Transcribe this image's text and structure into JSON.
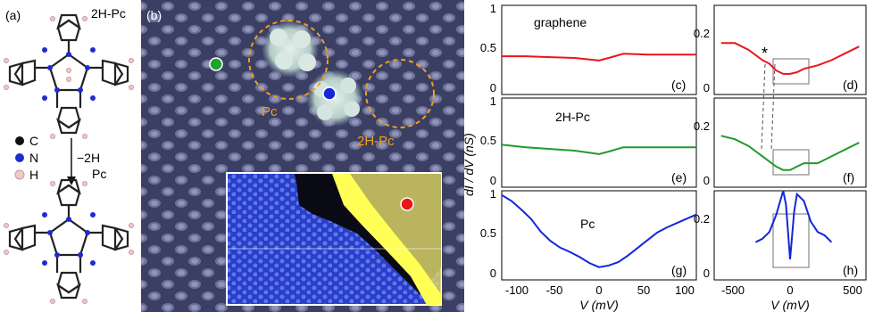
{
  "panel_a": {
    "tag": "(a)",
    "top_label": "2H-Pc",
    "bottom_label": "Pc",
    "arrow_label": "−2H",
    "legend": [
      {
        "label": "C",
        "color": "#111111"
      },
      {
        "label": "N",
        "color": "#1f2bd0"
      },
      {
        "label": "H",
        "color": "#f1c9c9"
      }
    ]
  },
  "panel_b": {
    "tag": "(b)",
    "circle_label_pc": "Pc",
    "circle_label_2hpc": "2H-Pc",
    "marker_colors": {
      "graphene": "#1aa52e",
      "twoHPc": "#1426d9",
      "pc": "#e8161b",
      "circles": "#f0a020"
    }
  },
  "chart_data": [
    {
      "type": "line",
      "id": "c",
      "tag": "(c)",
      "label": "graphene",
      "xlim": [
        -100,
        100
      ],
      "ylim": [
        0,
        1.05
      ],
      "x": [
        -100,
        -75,
        -50,
        -25,
        0,
        10,
        25,
        50,
        75,
        100
      ],
      "series": [
        {
          "color": "#e8161b",
          "values": [
            0.45,
            0.45,
            0.44,
            0.43,
            0.4,
            0.43,
            0.48,
            0.47,
            0.47,
            0.47
          ]
        }
      ]
    },
    {
      "type": "line",
      "id": "e",
      "tag": "(e)",
      "label": "2H-Pc",
      "xlim": [
        -100,
        100
      ],
      "ylim": [
        0,
        1.05
      ],
      "x": [
        -100,
        -75,
        -50,
        -25,
        0,
        10,
        25,
        50,
        75,
        100
      ],
      "series": [
        {
          "color": "#1f9b2c",
          "values": [
            0.5,
            0.47,
            0.45,
            0.43,
            0.39,
            0.42,
            0.47,
            0.47,
            0.47,
            0.47
          ]
        }
      ]
    },
    {
      "type": "line",
      "id": "g",
      "tag": "(g)",
      "label": "Pc",
      "xlim": [
        -100,
        100
      ],
      "ylim": [
        0,
        1.05
      ],
      "x": [
        -100,
        -90,
        -80,
        -70,
        -60,
        -50,
        -40,
        -30,
        -20,
        -10,
        0,
        10,
        20,
        30,
        40,
        50,
        60,
        70,
        80,
        90,
        100
      ],
      "series": [
        {
          "color": "#1426d9",
          "values": [
            1.0,
            0.93,
            0.83,
            0.72,
            0.57,
            0.46,
            0.38,
            0.33,
            0.27,
            0.2,
            0.15,
            0.17,
            0.21,
            0.29,
            0.38,
            0.47,
            0.56,
            0.62,
            0.67,
            0.72,
            0.77
          ]
        }
      ]
    },
    {
      "type": "line",
      "id": "d",
      "tag": "(d)",
      "xlim": [
        -550,
        550
      ],
      "ylim": [
        0,
        0.26
      ],
      "x": [
        -500,
        -400,
        -300,
        -200,
        -150,
        -100,
        -50,
        0,
        50,
        100,
        200,
        300,
        400,
        500
      ],
      "series": [
        {
          "color": "#e8161b",
          "values": [
            0.15,
            0.15,
            0.13,
            0.1,
            0.09,
            0.07,
            0.06,
            0.06,
            0.065,
            0.075,
            0.085,
            0.1,
            0.12,
            0.14
          ]
        }
      ],
      "annotation": "*"
    },
    {
      "type": "line",
      "id": "f",
      "tag": "(f)",
      "xlim": [
        -550,
        550
      ],
      "ylim": [
        0,
        0.26
      ],
      "x": [
        -500,
        -400,
        -300,
        -200,
        -100,
        -50,
        0,
        50,
        100,
        200,
        300,
        400,
        500
      ],
      "series": [
        {
          "color": "#1f9b2c",
          "values": [
            0.15,
            0.14,
            0.12,
            0.09,
            0.06,
            0.05,
            0.05,
            0.06,
            0.07,
            0.07,
            0.09,
            0.11,
            0.13
          ]
        }
      ]
    },
    {
      "type": "line",
      "id": "h",
      "tag": "(h)",
      "xlim": [
        -550,
        550
      ],
      "ylim": [
        0,
        0.26
      ],
      "x": [
        -250,
        -200,
        -150,
        -100,
        -50,
        -30,
        0,
        30,
        50,
        100,
        150,
        200,
        250,
        300
      ],
      "series": [
        {
          "color": "#1426d9",
          "values": [
            0.11,
            0.12,
            0.14,
            0.19,
            0.26,
            0.22,
            0.06,
            0.2,
            0.25,
            0.23,
            0.17,
            0.14,
            0.13,
            0.11
          ]
        }
      ]
    }
  ],
  "axes": {
    "left_yticks": [
      "0",
      "0.5",
      "1"
    ],
    "right_yticks": [
      "0",
      "0.2"
    ],
    "left_xticks": [
      "-100",
      "-50",
      "0",
      "50",
      "100"
    ],
    "right_xticks": [
      "-500",
      "0",
      "500"
    ],
    "ylabel": "dI / dV (nS)",
    "xlabel_left": "V (mV)",
    "xlabel_right": "V (mV)"
  }
}
